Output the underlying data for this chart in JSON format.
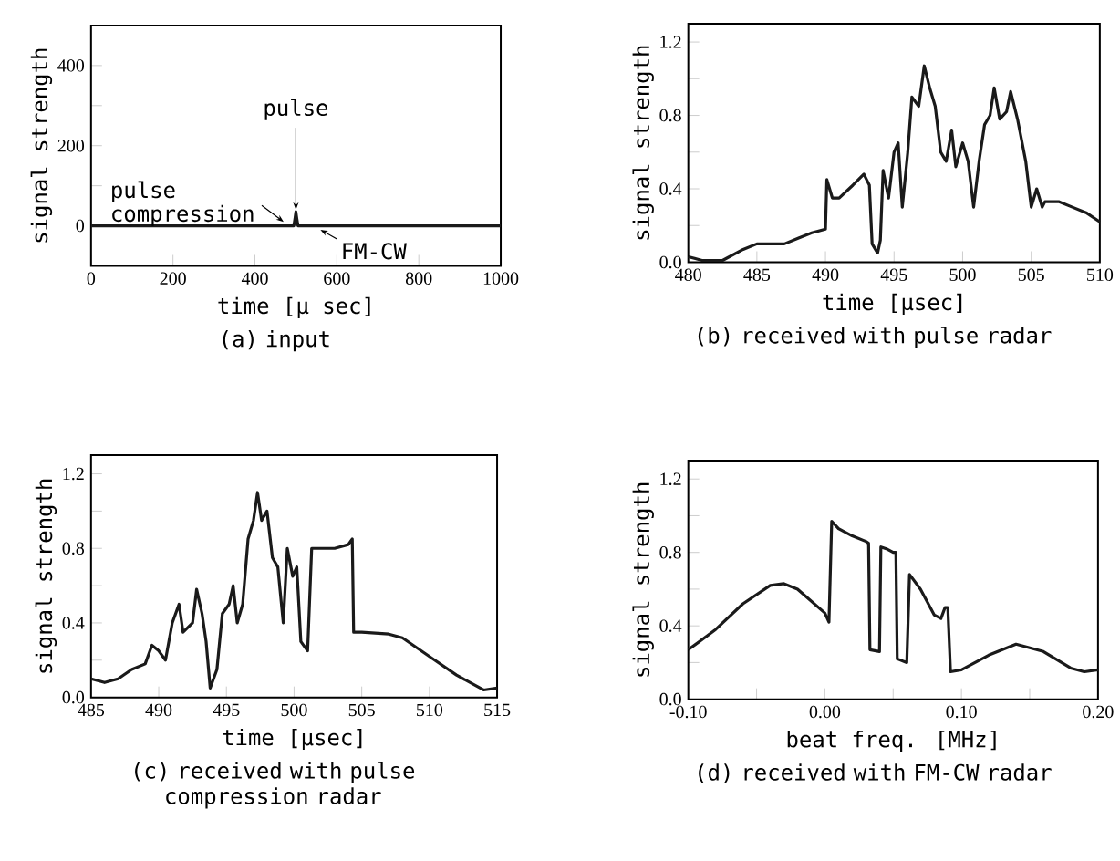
{
  "chart_data": [
    {
      "type": "line",
      "title": "(a) input",
      "xlabel": "time [μ sec]",
      "ylabel": "signal strength",
      "color": "#1a1a1a",
      "x": [
        0,
        480,
        495,
        498,
        500,
        502,
        505,
        520,
        1000
      ],
      "values": [
        0,
        0,
        0,
        20,
        35,
        20,
        0,
        0,
        0
      ],
      "xlim": [
        0,
        1000
      ],
      "xticks": [
        0,
        200,
        400,
        600,
        800,
        1000
      ],
      "ylim": [
        -100,
        500
      ],
      "yticks": [
        0,
        {
          "value": 100,
          "label": null
        },
        200,
        {
          "value": 300,
          "label": null
        },
        400
      ],
      "annotations": [
        {
          "text": "pulse",
          "x": 500,
          "y": 40
        },
        {
          "text": "pulse compression",
          "x": 470,
          "y": 10
        },
        {
          "text": "FM-CW",
          "x": 560,
          "y": -10
        }
      ]
    },
    {
      "type": "line",
      "title": "(b) received with pulse radar",
      "xlabel": "time [μsec]",
      "ylabel": "signal strength",
      "color": "#1a1a1a",
      "x": [
        480,
        481,
        482.5,
        484,
        485,
        486,
        487,
        488,
        489,
        490,
        490.1,
        490.5,
        491,
        492,
        492.8,
        493.2,
        493.4,
        493.8,
        494,
        494.2,
        494.6,
        495,
        495.3,
        495.6,
        496,
        496.3,
        496.8,
        497.2,
        497.6,
        498,
        498.4,
        498.8,
        499.2,
        499.5,
        500,
        500.4,
        500.8,
        501.2,
        501.6,
        502,
        502.3,
        502.7,
        503.2,
        503.5,
        504,
        504.6,
        505,
        505.4,
        505.8,
        506,
        507,
        508,
        509,
        510
      ],
      "values": [
        0.03,
        0.01,
        0.01,
        0.07,
        0.1,
        0.1,
        0.1,
        0.13,
        0.16,
        0.18,
        0.45,
        0.35,
        0.35,
        0.42,
        0.48,
        0.42,
        0.1,
        0.05,
        0.12,
        0.5,
        0.35,
        0.6,
        0.65,
        0.3,
        0.6,
        0.9,
        0.85,
        1.07,
        0.95,
        0.85,
        0.6,
        0.55,
        0.72,
        0.52,
        0.65,
        0.55,
        0.3,
        0.55,
        0.75,
        0.8,
        0.95,
        0.78,
        0.82,
        0.93,
        0.78,
        0.55,
        0.3,
        0.4,
        0.3,
        0.33,
        0.33,
        0.3,
        0.27,
        0.22
      ],
      "xlim": [
        480,
        510
      ],
      "xticks": [
        480,
        485,
        490,
        495,
        500,
        505,
        510
      ],
      "ylim": [
        0,
        1.3
      ],
      "yticks": [
        {
          "value": 0,
          "label": "0.0"
        },
        {
          "value": 0.2,
          "label": null
        },
        0.4,
        {
          "value": 0.6,
          "label": null
        },
        0.8,
        {
          "value": 1.0,
          "label": null
        },
        1.2
      ]
    },
    {
      "type": "line",
      "title": "(c) received with pulse compression radar",
      "xlabel": "time [μsec]",
      "ylabel": "signal strength",
      "color": "#1a1a1a",
      "x": [
        485,
        486,
        487,
        488,
        489,
        489.5,
        490,
        490.5,
        491,
        491.5,
        491.8,
        492.5,
        492.8,
        493.2,
        493.5,
        493.8,
        494.3,
        494.7,
        495.2,
        495.5,
        495.8,
        496.2,
        496.6,
        497,
        497.3,
        497.6,
        498,
        498.4,
        498.8,
        499.2,
        499.5,
        499.9,
        500.2,
        500.5,
        501,
        501.3,
        502,
        503,
        504,
        504.3,
        504.4,
        505,
        507,
        508,
        510,
        512,
        514,
        515
      ],
      "values": [
        0.1,
        0.08,
        0.1,
        0.15,
        0.18,
        0.28,
        0.25,
        0.2,
        0.4,
        0.5,
        0.35,
        0.4,
        0.58,
        0.45,
        0.3,
        0.05,
        0.15,
        0.45,
        0.5,
        0.6,
        0.4,
        0.5,
        0.85,
        0.95,
        1.1,
        0.95,
        1.0,
        0.75,
        0.7,
        0.4,
        0.8,
        0.65,
        0.7,
        0.3,
        0.25,
        0.8,
        0.8,
        0.8,
        0.82,
        0.85,
        0.35,
        0.35,
        0.34,
        0.32,
        0.22,
        0.12,
        0.04,
        0.05
      ],
      "xlim": [
        485,
        515
      ],
      "xticks": [
        485,
        490,
        495,
        500,
        505,
        510,
        515
      ],
      "ylim": [
        0,
        1.3
      ],
      "yticks": [
        {
          "value": 0,
          "label": "0.0"
        },
        {
          "value": 0.2,
          "label": null
        },
        0.4,
        {
          "value": 0.6,
          "label": null
        },
        0.8,
        {
          "value": 1.0,
          "label": null
        },
        1.2
      ]
    },
    {
      "type": "line",
      "title": "(d) received with FM-CW radar",
      "xlabel": "beat freq. [MHz]",
      "ylabel": "signal strength",
      "color": "#1a1a1a",
      "x": [
        -0.1,
        -0.08,
        -0.06,
        -0.04,
        -0.03,
        -0.02,
        0,
        0.003,
        0.005,
        0.01,
        0.02,
        0.03,
        0.032,
        0.033,
        0.04,
        0.041,
        0.045,
        0.05,
        0.052,
        0.053,
        0.06,
        0.062,
        0.07,
        0.08,
        0.085,
        0.088,
        0.09,
        0.092,
        0.1,
        0.12,
        0.14,
        0.16,
        0.18,
        0.19,
        0.2
      ],
      "values": [
        0.27,
        0.38,
        0.52,
        0.62,
        0.63,
        0.6,
        0.47,
        0.42,
        0.97,
        0.93,
        0.89,
        0.86,
        0.85,
        0.27,
        0.26,
        0.83,
        0.82,
        0.8,
        0.8,
        0.22,
        0.2,
        0.68,
        0.6,
        0.46,
        0.44,
        0.5,
        0.5,
        0.15,
        0.16,
        0.24,
        0.3,
        0.26,
        0.17,
        0.15,
        0.16
      ],
      "xlim": [
        -0.1,
        0.2
      ],
      "xticks": [
        {
          "value": -0.1,
          "label": "-0.10"
        },
        {
          "value": -0.05,
          "label": null
        },
        {
          "value": 0,
          "label": "0.00"
        },
        {
          "value": 0.05,
          "label": null
        },
        {
          "value": 0.1,
          "label": "0.10"
        },
        {
          "value": 0.15,
          "label": null
        },
        {
          "value": 0.2,
          "label": "0.20"
        }
      ],
      "ylim": [
        0,
        1.3
      ],
      "yticks": [
        {
          "value": 0,
          "label": "0.0"
        },
        {
          "value": 0.2,
          "label": null
        },
        0.4,
        {
          "value": 0.6,
          "label": null
        },
        0.8,
        {
          "value": 1.0,
          "label": null
        },
        1.2
      ]
    }
  ]
}
